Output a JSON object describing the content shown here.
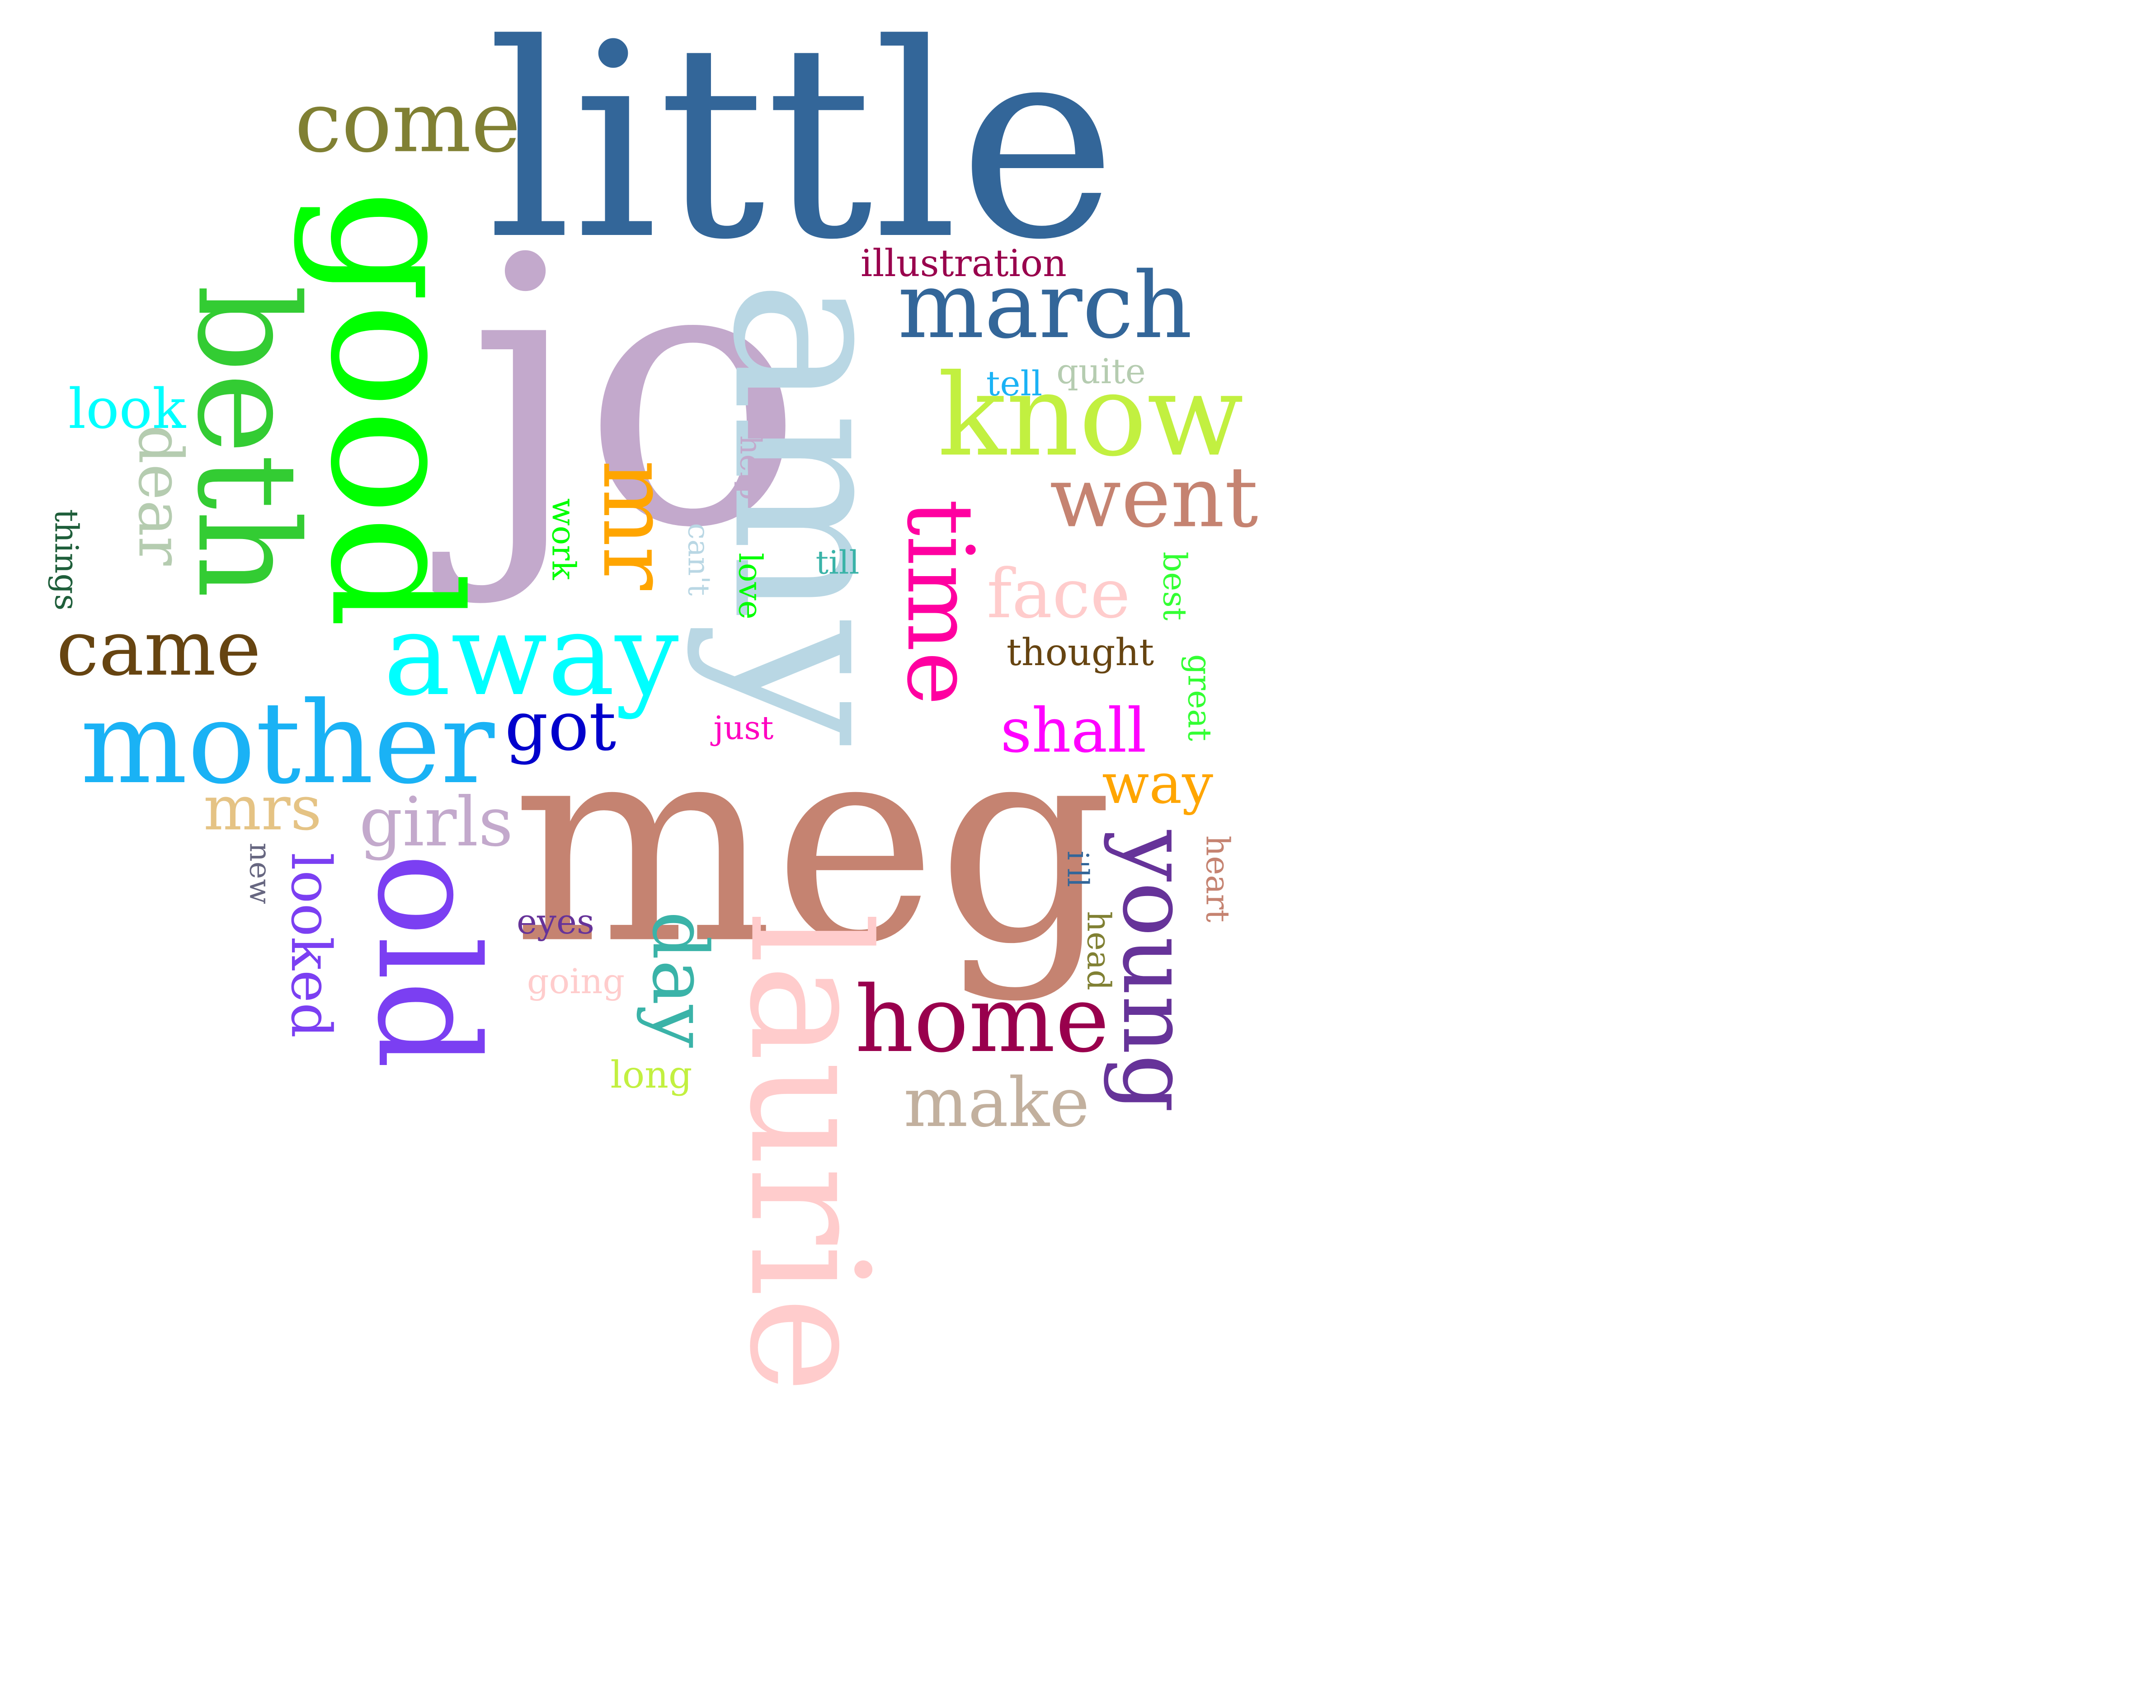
{
  "words": [
    {
      "id": "little",
      "text": "little",
      "color": "#336699"
    },
    {
      "id": "jo",
      "text": "jo",
      "color": "#c3a9cc"
    },
    {
      "id": "amy",
      "text": "amy",
      "color": "#b9d7e4"
    },
    {
      "id": "meg",
      "text": "meg",
      "color": "#c58371"
    },
    {
      "id": "laurie",
      "text": "laurie",
      "color": "#ffcccc"
    },
    {
      "id": "good",
      "text": "good",
      "color": "#00ff00"
    },
    {
      "id": "beth",
      "text": "beth",
      "color": "#33cc33"
    },
    {
      "id": "come",
      "text": "come",
      "color": "#808033"
    },
    {
      "id": "march",
      "text": "march",
      "color": "#336699"
    },
    {
      "id": "illustration",
      "text": "illustration",
      "color": "#99004d"
    },
    {
      "id": "know",
      "text": "know",
      "color": "#c2f040"
    },
    {
      "id": "tell",
      "text": "tell",
      "color": "#1ab2f5"
    },
    {
      "id": "quite",
      "text": "quite",
      "color": "#b5ccb0"
    },
    {
      "id": "went",
      "text": "went",
      "color": "#c58371"
    },
    {
      "id": "time",
      "text": "time",
      "color": "#ff00a0"
    },
    {
      "id": "face",
      "text": "face",
      "color": "#ffcccc"
    },
    {
      "id": "best",
      "text": "best",
      "color": "#33ff33"
    },
    {
      "id": "thought",
      "text": "thought",
      "color": "#664411"
    },
    {
      "id": "great",
      "text": "great",
      "color": "#33ff33"
    },
    {
      "id": "shall",
      "text": "shall",
      "color": "#ff00ff"
    },
    {
      "id": "way",
      "text": "way",
      "color": "#ffa500"
    },
    {
      "id": "heart",
      "text": "heart",
      "color": "#c58371"
    },
    {
      "id": "ill",
      "text": "i'll",
      "color": "#336699"
    },
    {
      "id": "head",
      "text": "head",
      "color": "#808033"
    },
    {
      "id": "young",
      "text": "young",
      "color": "#663399"
    },
    {
      "id": "home",
      "text": "home",
      "color": "#99004d"
    },
    {
      "id": "make",
      "text": "make",
      "color": "#c2b09e"
    },
    {
      "id": "mr",
      "text": "mr",
      "color": "#ffa500"
    },
    {
      "id": "help",
      "text": "help",
      "color": "#c3a9cc"
    },
    {
      "id": "cant",
      "text": "can't",
      "color": "#b9d7e4"
    },
    {
      "id": "love",
      "text": "love",
      "color": "#00ff00"
    },
    {
      "id": "till",
      "text": "till",
      "color": "#3ab3a8"
    },
    {
      "id": "work",
      "text": "work",
      "color": "#00ff00"
    },
    {
      "id": "away",
      "text": "away",
      "color": "#00ffff"
    },
    {
      "id": "got",
      "text": "got",
      "color": "#0000cc"
    },
    {
      "id": "just",
      "text": "just",
      "color": "#ff00c0"
    },
    {
      "id": "mother",
      "text": "mother",
      "color": "#1ab2f5"
    },
    {
      "id": "look",
      "text": "look",
      "color": "#00ffff"
    },
    {
      "id": "dear",
      "text": "dear",
      "color": "#b5ccb0"
    },
    {
      "id": "things",
      "text": "things",
      "color": "#1e5e3a"
    },
    {
      "id": "came",
      "text": "came",
      "color": "#664411"
    },
    {
      "id": "mrs",
      "text": "mrs",
      "color": "#e5c384"
    },
    {
      "id": "girls",
      "text": "girls",
      "color": "#c3a9cc"
    },
    {
      "id": "new",
      "text": "new",
      "color": "#666680"
    },
    {
      "id": "looked",
      "text": "looked",
      "color": "#7b3ff2"
    },
    {
      "id": "old",
      "text": "old",
      "color": "#7b3ff2"
    },
    {
      "id": "eyes",
      "text": "eyes",
      "color": "#663399"
    },
    {
      "id": "going",
      "text": "going",
      "color": "#ffcccc"
    },
    {
      "id": "day",
      "text": "day",
      "color": "#3ab3a8"
    },
    {
      "id": "long",
      "text": "long",
      "color": "#c2f040"
    }
  ]
}
